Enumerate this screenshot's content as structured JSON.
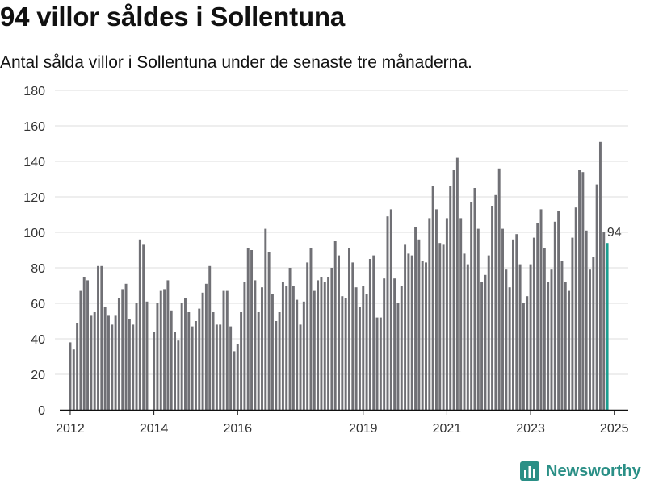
{
  "header": {
    "title": "94 villor såldes i Sollentuna",
    "subtitle": "Antal sålda villor i Sollentuna under de senaste tre månaderna."
  },
  "brand": {
    "name": "Newsworthy",
    "color": "#2a8f86"
  },
  "colors": {
    "bars": "#707075",
    "highlight": "#1a9e8f"
  },
  "chart_data": {
    "type": "bar",
    "title": "",
    "xlabel": "",
    "ylabel": "",
    "ylim": [
      0,
      180
    ],
    "y_ticks": [
      0,
      20,
      40,
      60,
      80,
      100,
      120,
      140,
      160,
      180
    ],
    "x_range": [
      "2011-10",
      "2025-05"
    ],
    "x_ticks": [
      {
        "label": "2012",
        "at": "2012-01"
      },
      {
        "label": "2014",
        "at": "2014-01"
      },
      {
        "label": "2016",
        "at": "2016-01"
      },
      {
        "label": "2019",
        "at": "2019-01"
      },
      {
        "label": "2021",
        "at": "2021-01"
      },
      {
        "label": "2023",
        "at": "2023-01"
      },
      {
        "label": "2025",
        "at": "2025-01"
      }
    ],
    "grid": true,
    "series": [
      {
        "start": "2012-01",
        "interval": "month",
        "values": [
          38,
          34,
          49,
          67,
          75,
          73,
          53,
          55,
          81,
          81,
          58,
          53,
          48,
          53,
          63,
          68,
          71,
          51,
          48,
          60,
          96,
          93,
          61,
          0,
          44,
          60,
          67,
          68,
          73,
          56,
          44,
          39,
          60,
          63,
          55,
          47,
          50,
          57,
          66,
          71,
          81,
          55,
          48,
          48,
          67,
          67,
          47,
          33,
          37,
          55,
          72,
          91,
          90,
          73,
          55,
          69,
          102,
          89,
          65,
          50,
          55,
          72,
          70,
          80,
          70,
          62,
          48,
          61,
          83,
          91,
          67,
          73,
          75,
          72,
          75,
          80,
          95,
          87,
          64,
          63,
          91,
          83,
          69,
          58,
          70,
          65,
          85,
          87,
          52,
          52,
          74,
          109,
          113,
          74,
          60,
          70,
          93,
          88,
          87,
          103,
          96,
          84,
          83,
          108,
          126,
          113,
          94,
          93,
          108,
          126,
          135,
          142,
          108,
          88,
          82,
          117,
          125,
          102,
          72,
          76,
          87,
          115,
          121,
          136,
          102,
          79,
          69,
          96,
          99,
          82,
          60,
          64,
          82,
          97,
          105,
          113,
          91,
          72,
          79,
          106,
          112,
          84,
          72,
          67,
          97,
          114,
          135,
          134,
          101,
          79,
          86,
          127,
          151,
          100,
          94
        ]
      }
    ],
    "annotations": [
      {
        "label": "94",
        "at": "2025-01",
        "value": 94
      }
    ]
  }
}
